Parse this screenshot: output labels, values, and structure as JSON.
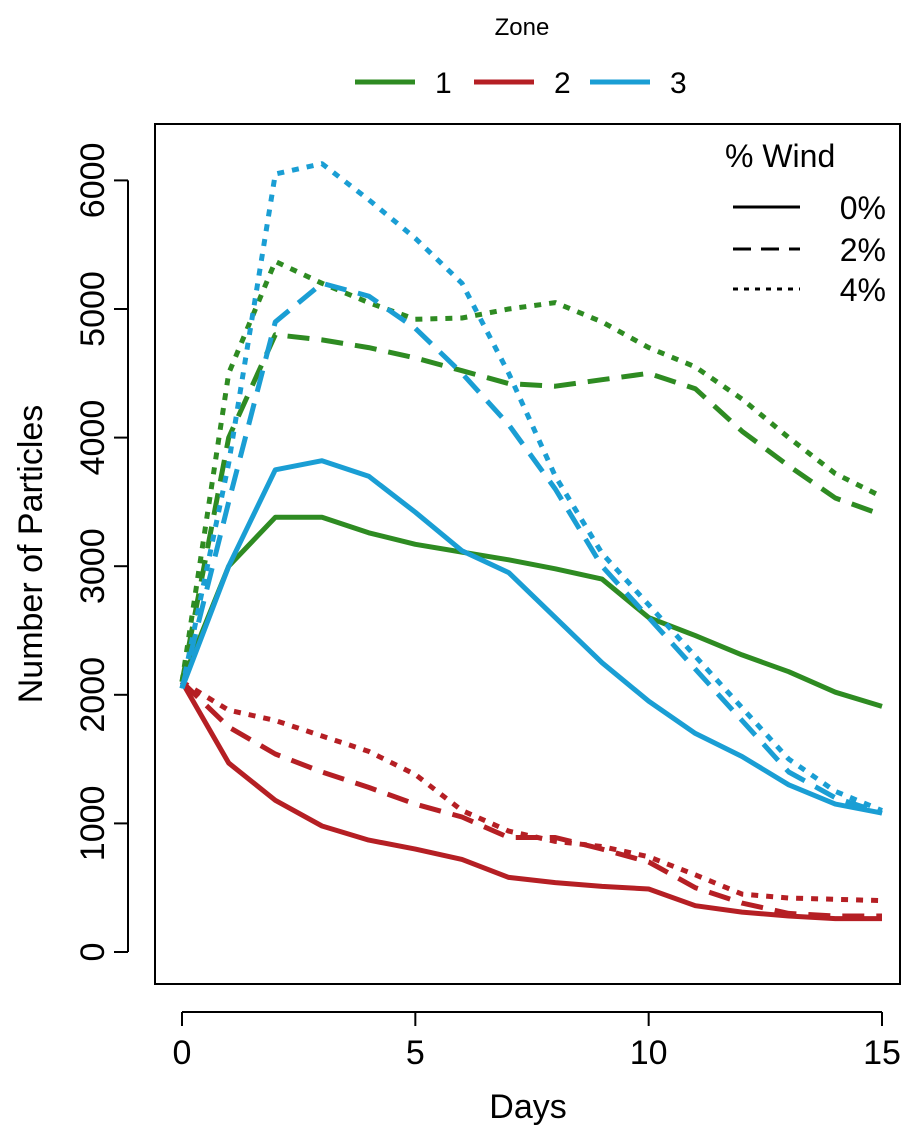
{
  "chart_data": {
    "type": "line",
    "xlabel": "Days",
    "ylabel": "Number of Particles",
    "xlim": [
      0,
      15
    ],
    "ylim": [
      0,
      6100
    ],
    "x_ticks": [
      0,
      5,
      10,
      15
    ],
    "y_ticks": [
      0,
      1000,
      2000,
      3000,
      4000,
      5000,
      6000
    ],
    "grid": false,
    "zone_legend": {
      "title": "Zone",
      "placement": "top-center",
      "entries": [
        {
          "label": "1",
          "color": "#2e8b22"
        },
        {
          "label": "2",
          "color": "#b51f24"
        },
        {
          "label": "3",
          "color": "#1a9ed4"
        }
      ]
    },
    "wind_legend": {
      "title": "% Wind",
      "placement": "top-right",
      "entries": [
        {
          "label": "0%",
          "dash": "solid"
        },
        {
          "label": "2%",
          "dash": "dashed"
        },
        {
          "label": "4%",
          "dash": "dotted"
        }
      ]
    },
    "x": [
      0,
      1,
      2,
      3,
      4,
      5,
      6,
      7,
      8,
      9,
      10,
      11,
      12,
      13,
      14,
      15
    ],
    "series": [
      {
        "zone": "1",
        "wind": "0%",
        "color": "#2e8b22",
        "dash": "solid",
        "values": [
          2100,
          3000,
          3380,
          3380,
          3260,
          3170,
          3110,
          3050,
          2980,
          2900,
          2600,
          2460,
          2310,
          2180,
          2020,
          1910
        ]
      },
      {
        "zone": "1",
        "wind": "2%",
        "color": "#2e8b22",
        "dash": "dashed",
        "values": [
          2100,
          4000,
          4800,
          4760,
          4700,
          4620,
          4520,
          4420,
          4400,
          4450,
          4500,
          4380,
          4050,
          3780,
          3530,
          3400
        ]
      },
      {
        "zone": "1",
        "wind": "4%",
        "color": "#2e8b22",
        "dash": "dotted",
        "values": [
          2100,
          4500,
          5370,
          5200,
          5050,
          4920,
          4930,
          5000,
          5050,
          4900,
          4700,
          4550,
          4300,
          4000,
          3720,
          3540
        ]
      },
      {
        "zone": "2",
        "wind": "0%",
        "color": "#b51f24",
        "dash": "solid",
        "values": [
          2100,
          1470,
          1180,
          980,
          870,
          800,
          720,
          580,
          540,
          510,
          490,
          360,
          310,
          280,
          260,
          260
        ]
      },
      {
        "zone": "2",
        "wind": "2%",
        "color": "#b51f24",
        "dash": "dashed",
        "values": [
          2100,
          1750,
          1540,
          1400,
          1280,
          1150,
          1050,
          890,
          890,
          800,
          700,
          500,
          380,
          300,
          280,
          280
        ]
      },
      {
        "zone": "2",
        "wind": "4%",
        "color": "#b51f24",
        "dash": "dotted",
        "values": [
          2100,
          1880,
          1800,
          1680,
          1560,
          1380,
          1100,
          940,
          860,
          820,
          740,
          600,
          450,
          420,
          410,
          400
        ]
      },
      {
        "zone": "3",
        "wind": "0%",
        "color": "#1a9ed4",
        "dash": "solid",
        "values": [
          2050,
          3000,
          3750,
          3820,
          3700,
          3420,
          3120,
          2950,
          2600,
          2250,
          1950,
          1700,
          1520,
          1300,
          1150,
          1080
        ]
      },
      {
        "zone": "3",
        "wind": "2%",
        "color": "#1a9ed4",
        "dash": "dashed",
        "values": [
          2050,
          3500,
          4900,
          5200,
          5100,
          4850,
          4500,
          4100,
          3600,
          3000,
          2600,
          2200,
          1800,
          1400,
          1200,
          1080
        ]
      },
      {
        "zone": "3",
        "wind": "4%",
        "color": "#1a9ed4",
        "dash": "dotted",
        "values": [
          2050,
          3800,
          6050,
          6130,
          5850,
          5550,
          5200,
          4500,
          3700,
          3100,
          2700,
          2300,
          1900,
          1500,
          1250,
          1100
        ]
      }
    ]
  }
}
